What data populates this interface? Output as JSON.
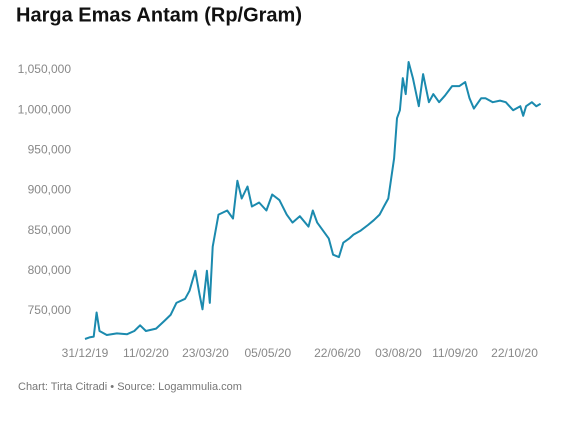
{
  "chart_data": {
    "type": "line",
    "title": "Harga Emas Antam (Rp/Gram)",
    "footer": "Chart: Tirta Citradi • Source: Logammulia.com",
    "x": [
      "31/12/19",
      "03/01/20",
      "06/01/20",
      "08/01/20",
      "10/01/20",
      "15/01/20",
      "22/01/20",
      "29/01/20",
      "03/02/20",
      "07/02/20",
      "11/02/20",
      "18/02/20",
      "24/02/20",
      "28/02/20",
      "03/03/20",
      "09/03/20",
      "12/03/20",
      "16/03/20",
      "19/03/20",
      "21/03/20",
      "24/03/20",
      "26/03/20",
      "28/03/20",
      "01/04/20",
      "07/04/20",
      "11/04/20",
      "14/04/20",
      "17/04/20",
      "21/04/20",
      "24/04/20",
      "29/04/20",
      "04/05/20",
      "08/05/20",
      "13/05/20",
      "18/05/20",
      "22/05/20",
      "27/05/20",
      "02/06/20",
      "05/06/20",
      "08/06/20",
      "12/06/20",
      "16/06/20",
      "19/06/20",
      "23/06/20",
      "26/06/20",
      "30/06/20",
      "03/07/20",
      "08/07/20",
      "13/07/20",
      "17/07/20",
      "21/07/20",
      "24/07/20",
      "27/07/20",
      "29/07/20",
      "31/07/20",
      "02/08/20",
      "04/08/20",
      "06/08/20",
      "08/08/20",
      "10/08/20",
      "13/08/20",
      "17/08/20",
      "20/08/20",
      "24/08/20",
      "27/08/20",
      "31/08/20",
      "04/09/20",
      "09/09/20",
      "14/09/20",
      "18/09/20",
      "21/09/20",
      "24/09/20",
      "29/09/20",
      "02/10/20",
      "07/10/20",
      "12/10/20",
      "16/10/20",
      "21/10/20",
      "26/10/20",
      "28/10/20",
      "30/10/20",
      "03/11/20",
      "06/11/20",
      "09/11/20"
    ],
    "series": [
      {
        "name": "Harga Emas Antam",
        "color": "#1b8aae",
        "values": [
          715000,
          717000,
          718000,
          748000,
          725000,
          720000,
          722000,
          721000,
          725000,
          732000,
          725000,
          728000,
          738000,
          745000,
          760000,
          765000,
          775000,
          800000,
          770000,
          752000,
          800000,
          760000,
          830000,
          870000,
          875000,
          865000,
          912000,
          890000,
          905000,
          880000,
          885000,
          875000,
          895000,
          888000,
          870000,
          860000,
          868000,
          855000,
          875000,
          860000,
          850000,
          840000,
          820000,
          817000,
          835000,
          840000,
          845000,
          850000,
          857000,
          863000,
          870000,
          880000,
          890000,
          915000,
          940000,
          990000,
          1000000,
          1040000,
          1020000,
          1060000,
          1040000,
          1005000,
          1045000,
          1010000,
          1020000,
          1010000,
          1018000,
          1030000,
          1030000,
          1035000,
          1015000,
          1002000,
          1015000,
          1015000,
          1010000,
          1012000,
          1010000,
          1000000,
          1005000,
          993000,
          1005000,
          1010000,
          1005000,
          1008000
        ]
      }
    ],
    "xlim": [
      "31/12/19",
      "12/11/20"
    ],
    "xticks": [
      "31/12/19",
      "11/02/20",
      "23/03/20",
      "05/05/20",
      "22/06/20",
      "03/08/20",
      "11/09/20",
      "22/10/20"
    ],
    "ylim": [
      710000,
      1070000
    ],
    "yticks": [
      {
        "value": 750000,
        "label": "750,000"
      },
      {
        "value": 800000,
        "label": "800,000"
      },
      {
        "value": 850000,
        "label": "850,000"
      },
      {
        "value": 900000,
        "label": "900,000"
      },
      {
        "value": 950000,
        "label": "950,000"
      },
      {
        "value": 1000000,
        "label": "1,000,000"
      },
      {
        "value": 1050000,
        "label": "1,050,000"
      }
    ],
    "grid": false
  }
}
